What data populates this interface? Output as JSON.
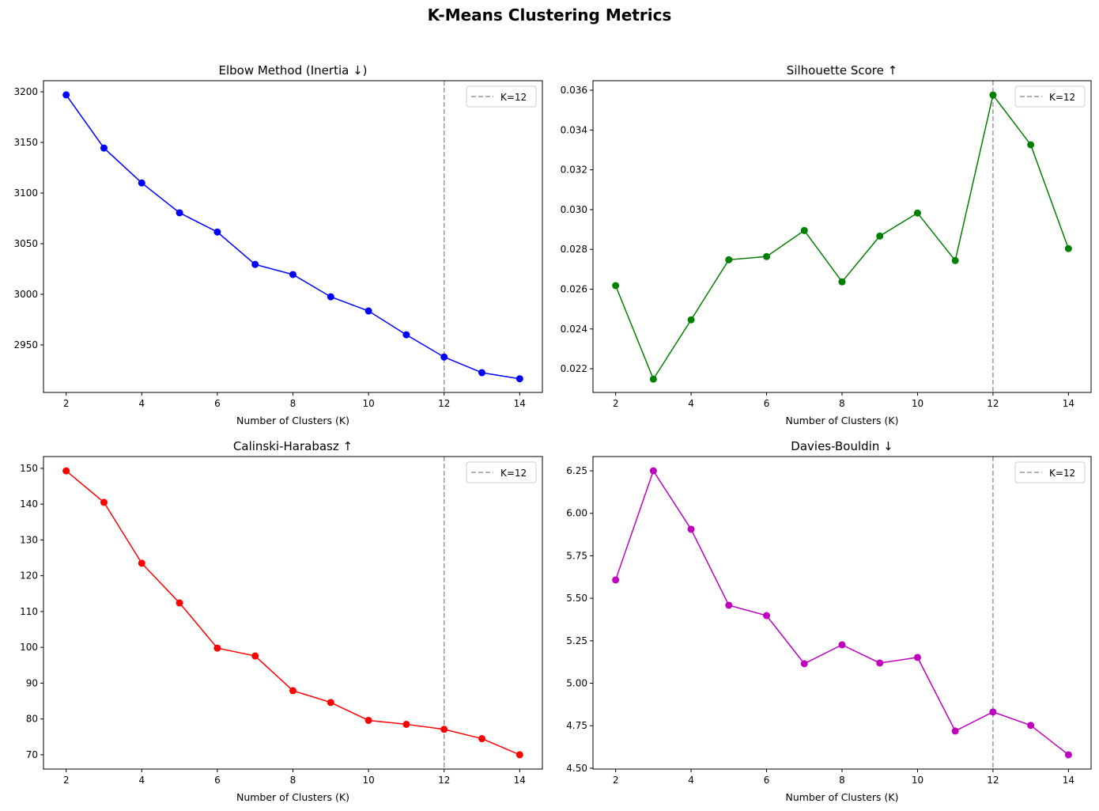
{
  "suptitle": "K-Means Clustering Metrics",
  "chart_data": [
    {
      "type": "line",
      "title": "Elbow Method (Inertia ↓)",
      "xlabel": "Number of Clusters (K)",
      "ylabel": "",
      "x": [
        2,
        3,
        4,
        5,
        6,
        7,
        8,
        9,
        10,
        11,
        12,
        13,
        14
      ],
      "values": [
        3197,
        3144.5,
        3110,
        3080.5,
        3061.5,
        3029.5,
        3019.5,
        2997.5,
        2983.5,
        2960,
        2938,
        2922.5,
        2916.5
      ],
      "xlim": [
        1.4,
        14.6
      ],
      "ylim": [
        2903,
        3211
      ],
      "xticks": [
        2,
        4,
        6,
        8,
        10,
        12,
        14
      ],
      "yticks": [
        2950,
        3000,
        3050,
        3100,
        3150,
        3200
      ],
      "color": "#0000ff",
      "vline": {
        "x": 12,
        "label": "K=12",
        "color": "#999999"
      },
      "legend": "top-right",
      "grid": false
    },
    {
      "type": "line",
      "title": "Silhouette Score ↑",
      "xlabel": "Number of Clusters (K)",
      "ylabel": "",
      "x": [
        2,
        3,
        4,
        5,
        6,
        7,
        8,
        9,
        10,
        11,
        12,
        13,
        14
      ],
      "values": [
        0.02618,
        0.02148,
        0.02446,
        0.02748,
        0.02764,
        0.02895,
        0.02637,
        0.02867,
        0.02983,
        0.02744,
        0.03576,
        0.03326,
        0.02804
      ],
      "xlim": [
        1.4,
        14.6
      ],
      "ylim": [
        0.02081,
        0.03648
      ],
      "xticks": [
        2,
        4,
        6,
        8,
        10,
        12,
        14
      ],
      "yticks": [
        "0.022",
        "0.024",
        "0.026",
        "0.028",
        "0.030",
        "0.032",
        "0.034",
        "0.036"
      ],
      "color": "#008000",
      "vline": {
        "x": 12,
        "label": "K=12",
        "color": "#999999"
      },
      "legend": "top-right",
      "grid": false
    },
    {
      "type": "line",
      "title": "Calinski-Harabasz ↑",
      "xlabel": "Number of Clusters (K)",
      "ylabel": "",
      "x": [
        2,
        3,
        4,
        5,
        6,
        7,
        8,
        9,
        10,
        11,
        12,
        13,
        14
      ],
      "values": [
        149.3,
        140.5,
        123.5,
        112.4,
        99.8,
        97.6,
        87.9,
        84.6,
        79.6,
        78.5,
        77.1,
        74.5,
        70.0
      ],
      "xlim": [
        1.4,
        14.6
      ],
      "ylim": [
        66.0,
        153.3
      ],
      "xticks": [
        2,
        4,
        6,
        8,
        10,
        12,
        14
      ],
      "yticks": [
        70,
        80,
        90,
        100,
        110,
        120,
        130,
        140,
        150
      ],
      "color": "#ff0000",
      "vline": {
        "x": 12,
        "label": "K=12",
        "color": "#999999"
      },
      "legend": "top-right",
      "grid": false
    },
    {
      "type": "line",
      "title": "Davies-Bouldin ↓",
      "xlabel": "Number of Clusters (K)",
      "ylabel": "",
      "x": [
        2,
        3,
        4,
        5,
        6,
        7,
        8,
        9,
        10,
        11,
        12,
        13,
        14
      ],
      "values": [
        5.608,
        6.25,
        5.906,
        5.459,
        5.398,
        5.115,
        5.226,
        5.119,
        5.152,
        4.719,
        4.831,
        4.752,
        4.579
      ],
      "xlim": [
        1.4,
        14.6
      ],
      "ylim": [
        4.495,
        6.334
      ],
      "xticks": [
        2,
        4,
        6,
        8,
        10,
        12,
        14
      ],
      "yticks": [
        "4.50",
        "4.75",
        "5.00",
        "5.25",
        "5.50",
        "5.75",
        "6.00",
        "6.25"
      ],
      "color": "#bf00bf",
      "vline": {
        "x": 12,
        "label": "K=12",
        "color": "#999999"
      },
      "legend": "top-right",
      "grid": false
    }
  ]
}
